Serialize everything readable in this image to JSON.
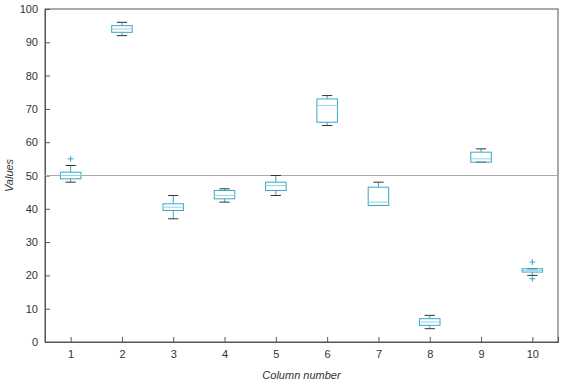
{
  "chart_data": {
    "type": "box",
    "x_label": "Column number",
    "y_label": "Values",
    "x": [
      1,
      2,
      3,
      4,
      5,
      6,
      7,
      8,
      9,
      10
    ],
    "xlim": [
      0.5,
      10.5
    ],
    "xticks": [
      1,
      2,
      3,
      4,
      5,
      6,
      7,
      8,
      9,
      10
    ],
    "ylim": [
      0,
      100
    ],
    "yticks": [
      0,
      10,
      20,
      30,
      40,
      50,
      60,
      70,
      80,
      90,
      100
    ],
    "color": "#3aa6c8",
    "marker": "+",
    "reference_line": 50,
    "whisker_low": [
      48,
      92,
      37,
      42,
      44,
      65,
      41,
      4,
      54,
      20
    ],
    "q1": [
      49,
      93,
      39.5,
      43,
      45.5,
      66,
      41,
      5,
      54,
      21
    ],
    "median": [
      50,
      94,
      40.5,
      44,
      47,
      71,
      42,
      6,
      55,
      21.5
    ],
    "q3": [
      51,
      95,
      41.5,
      45.5,
      48,
      73,
      46.5,
      7,
      57,
      22
    ],
    "whisker_high": [
      53,
      96,
      44,
      46,
      50,
      74,
      48,
      8,
      58,
      22
    ],
    "outliers": [
      [
        55
      ],
      [],
      [],
      [],
      [],
      [],
      [],
      [],
      [],
      [
        24,
        19
      ]
    ]
  }
}
